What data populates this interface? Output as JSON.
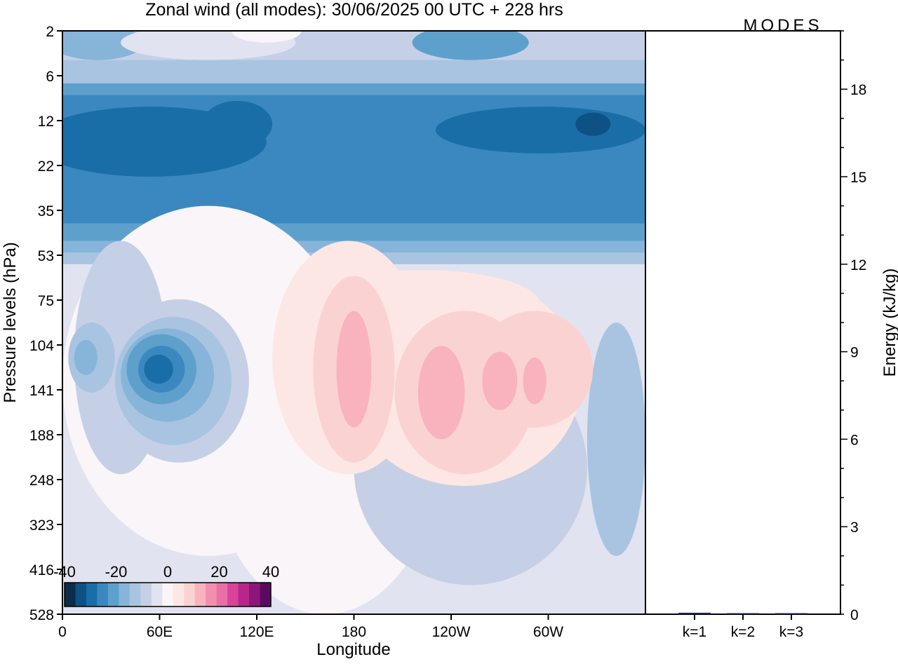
{
  "logo_text": "MODES",
  "chart_data": [
    {
      "type": "heatmap",
      "title": "Zonal wind (all modes):  30/06/2025  00 UTC  + 228 hrs",
      "xlabel": "Longitude",
      "ylabel": "Pressure levels (hPa)",
      "x_ticks": [
        "0",
        "60E",
        "120E",
        "180",
        "120W",
        "60W"
      ],
      "y_ticks": [
        "2",
        "6",
        "12",
        "22",
        "35",
        "53",
        "75",
        "104",
        "141",
        "188",
        "248",
        "323",
        "416",
        "528"
      ],
      "colorbar": {
        "tick_labels": [
          "-40",
          "-20",
          "0",
          "20",
          "40"
        ],
        "range": [
          -40,
          40
        ],
        "colors": [
          "#0c2c4a",
          "#0e5184",
          "#1a6ea8",
          "#3a88bf",
          "#5ea0cc",
          "#86b5d9",
          "#a9c4e0",
          "#c5d0e6",
          "#e1e3f0",
          "#faf5f8",
          "#fde7e4",
          "#fbd2d2",
          "#f8b3be",
          "#f38fae",
          "#ea6fa7",
          "#d9439a",
          "#b8268a",
          "#8d167a",
          "#5b0a62"
        ],
        "placement": "bottom-left"
      },
      "description_regions": {
        "strong_easterlies_hPa": [
          8,
          30
        ],
        "easterly_core_lon_hPa": [
          65,
          135
        ]
      }
    },
    {
      "type": "bar",
      "ylabel": "Energy (kJ/kg)",
      "categories": [
        "k=1",
        "k=2",
        "k=3"
      ],
      "values": [
        0.05,
        0.03,
        0.02
      ],
      "ylim": [
        0,
        20
      ],
      "y_ticks": [
        "0",
        "3",
        "6",
        "9",
        "12",
        "15",
        "18"
      ],
      "y_axis_position": "right",
      "bar_color": "#1a1a8c"
    }
  ]
}
